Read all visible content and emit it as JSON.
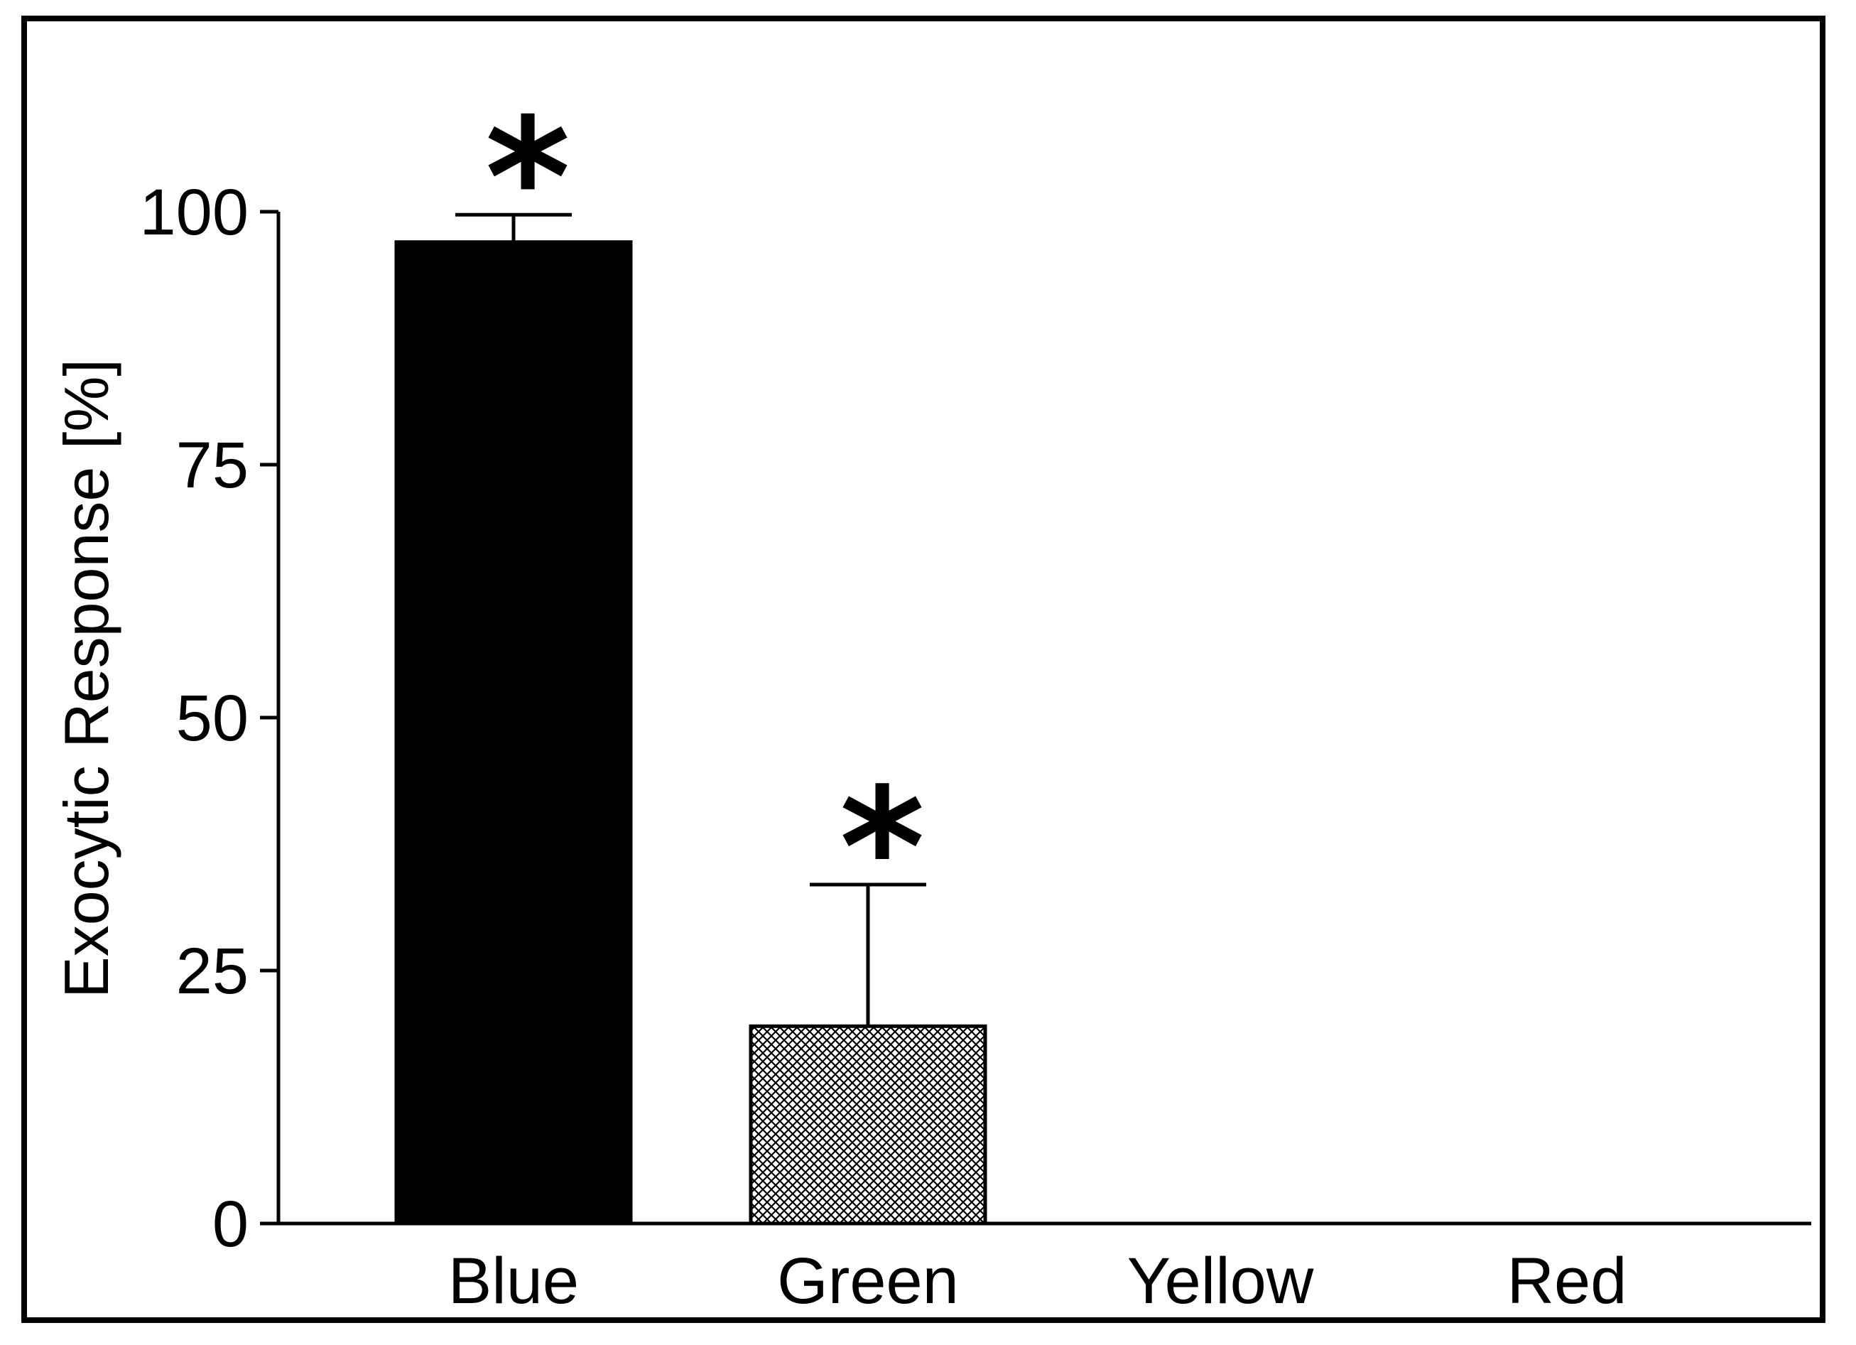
{
  "chart_data": {
    "type": "bar",
    "title": "",
    "xlabel": "",
    "ylabel": "Exocytic Response [%]",
    "ylim": [
      0,
      100
    ],
    "yticks": [
      "0",
      "25",
      "50",
      "75",
      "100"
    ],
    "categories": [
      "Blue",
      "Green",
      "Yellow",
      "Red"
    ],
    "values": [
      97,
      19.5,
      0,
      0
    ],
    "error_upper": [
      2.7,
      14,
      0,
      0
    ],
    "significance": [
      "*",
      "*",
      "",
      ""
    ],
    "bar_fill": [
      "solid-black",
      "crosshatch-gray",
      "none",
      "none"
    ],
    "colors": {
      "bar_solid": "#000000",
      "hatch_line": "#000000",
      "hatch_bg": "#ffffff",
      "axis": "#000000"
    },
    "grid": false,
    "legend": "none"
  }
}
